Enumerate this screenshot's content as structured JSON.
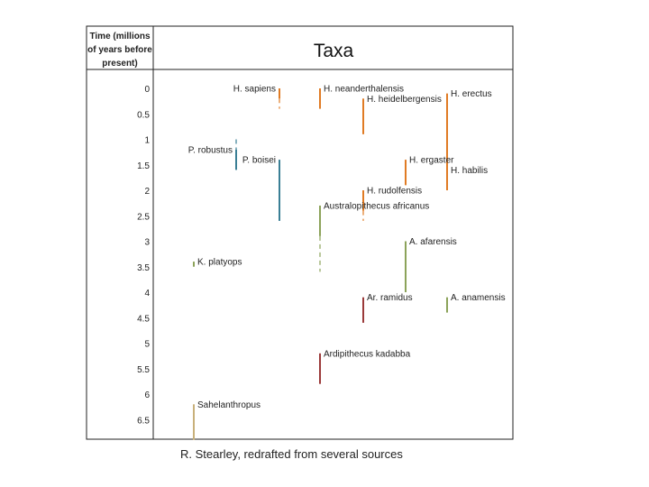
{
  "header": {
    "time_column_lines": [
      "Time (millions",
      "of years before",
      "present)"
    ],
    "title": "Taxa"
  },
  "time_axis": {
    "labels": [
      "0",
      "0.5",
      "1",
      "1.5",
      "2",
      "2.5",
      "3",
      "3.5",
      "4",
      "4.5",
      "5",
      "5.5",
      "6",
      "6.5"
    ]
  },
  "colors": {
    "homo": "#e07b24",
    "paranthropus": "#3a7f95",
    "australopithecus": "#8ca35a",
    "ardipithecus": "#9b3a3a",
    "early": "#c8b07a",
    "uncertain": "#aaaaaa"
  },
  "taxa": [
    {
      "name": "H. sapiens",
      "start": 0,
      "end": 0.2,
      "uncertain_end": 0.4,
      "color": "#e07b24"
    },
    {
      "name": "H. neanderthalensis",
      "start": 0,
      "end": 0.4,
      "color": "#e07b24"
    },
    {
      "name": "H. heidelbergensis",
      "start": 0.2,
      "end": 0.9,
      "color": "#e07b24"
    },
    {
      "name": "H. erectus",
      "start": 0.1,
      "end": 1.9,
      "color": "#e07b24"
    },
    {
      "name": "H. ergaster",
      "start": 1.4,
      "end": 1.9,
      "color": "#e07b24"
    },
    {
      "name": "H. habilis",
      "start": 1.6,
      "end": 2.0,
      "color": "#e07b24"
    },
    {
      "name": "H. rudolfensis",
      "start": 2.0,
      "end": 2.4,
      "uncertain_end": 2.6,
      "color": "#e07b24"
    },
    {
      "name": "P. robustus",
      "start": 1.2,
      "end": 1.6,
      "uncertain_start": 1.0,
      "color": "#3a7f95"
    },
    {
      "name": "P. boisei",
      "start": 1.4,
      "end": 2.6,
      "color": "#3a7f95"
    },
    {
      "name": "Australopithecus africanus",
      "start": 2.3,
      "end": 2.9,
      "uncertain_end": 3.6,
      "color": "#8ca35a"
    },
    {
      "name": "K. platyops",
      "start": 3.4,
      "end": 3.5,
      "color": "#8ca35a"
    },
    {
      "name": "A. afarensis",
      "start": 3.0,
      "end": 4.0,
      "color": "#8ca35a"
    },
    {
      "name": "A. anamensis",
      "start": 4.1,
      "end": 4.4,
      "color": "#8ca35a"
    },
    {
      "name": "Ar. ramidus",
      "start": 4.1,
      "end": 4.6,
      "color": "#9b3a3a"
    },
    {
      "name": "Ardipithecus kadabba",
      "start": 5.2,
      "end": 5.8,
      "color": "#9b3a3a"
    },
    {
      "name": "Sahelanthropus",
      "start": 6.2,
      "end": 6.9,
      "color": "#c8b07a"
    }
  ],
  "caption": "R. Stearley, redrafted from several sources"
}
